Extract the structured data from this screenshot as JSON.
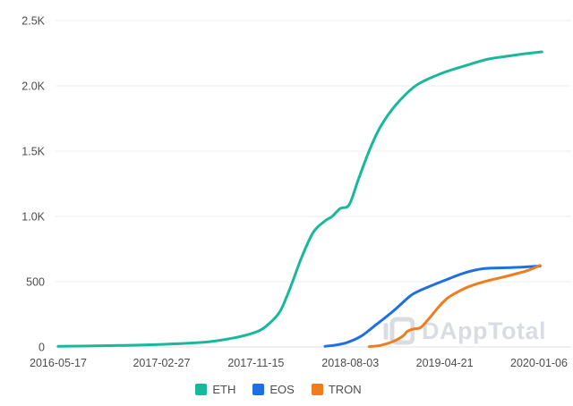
{
  "watermark": {
    "text": "DAppTotal"
  },
  "chart_data": {
    "type": "line",
    "description": "Cumulative number of DApps over time by platform",
    "grid": "horizontal-only",
    "legend_position": "bottom-center",
    "x_axis": {
      "kind": "time",
      "unit": "days since 2016-05-17",
      "range_days": [
        0,
        1330
      ],
      "ticks": [
        {
          "day": 0,
          "label": "2016-05-17"
        },
        {
          "day": 286,
          "label": "2017-02-27"
        },
        {
          "day": 547,
          "label": "2017-11-15"
        },
        {
          "day": 808,
          "label": "2018-08-03"
        },
        {
          "day": 1069,
          "label": "2019-04-21"
        },
        {
          "day": 1330,
          "label": "2020-01-06"
        }
      ]
    },
    "y_axis": {
      "range": [
        0,
        2500
      ],
      "ticks": [
        {
          "value": 0,
          "label": "0"
        },
        {
          "value": 500,
          "label": "500"
        },
        {
          "value": 1000,
          "label": "1.0K"
        },
        {
          "value": 1500,
          "label": "1.5K"
        },
        {
          "value": 2000,
          "label": "2.0K"
        },
        {
          "value": 2500,
          "label": "2.5K"
        }
      ]
    },
    "series": [
      {
        "name": "ETH",
        "color": "#19b89b",
        "points": [
          [
            0,
            5
          ],
          [
            136,
            10
          ],
          [
            265,
            18
          ],
          [
            409,
            38
          ],
          [
            495,
            75
          ],
          [
            552,
            120
          ],
          [
            582,
            175
          ],
          [
            612,
            265
          ],
          [
            632,
            385
          ],
          [
            649,
            505
          ],
          [
            674,
            690
          ],
          [
            706,
            880
          ],
          [
            738,
            965
          ],
          [
            758,
            1000
          ],
          [
            780,
            1060
          ],
          [
            805,
            1090
          ],
          [
            830,
            1280
          ],
          [
            860,
            1500
          ],
          [
            892,
            1690
          ],
          [
            936,
            1860
          ],
          [
            991,
            2005
          ],
          [
            1060,
            2095
          ],
          [
            1127,
            2155
          ],
          [
            1189,
            2205
          ],
          [
            1251,
            2230
          ],
          [
            1288,
            2245
          ],
          [
            1338,
            2260
          ]
        ]
      },
      {
        "name": "EOS",
        "color": "#1e6ee4",
        "points": [
          [
            738,
            5
          ],
          [
            768,
            15
          ],
          [
            795,
            30
          ],
          [
            818,
            55
          ],
          [
            842,
            90
          ],
          [
            879,
            170
          ],
          [
            929,
            280
          ],
          [
            971,
            385
          ],
          [
            991,
            420
          ],
          [
            1028,
            465
          ],
          [
            1078,
            520
          ],
          [
            1127,
            570
          ],
          [
            1177,
            600
          ],
          [
            1238,
            607
          ],
          [
            1288,
            612
          ],
          [
            1333,
            620
          ]
        ]
      },
      {
        "name": "TRON",
        "color": "#ef7d1d",
        "points": [
          [
            860,
            3
          ],
          [
            892,
            12
          ],
          [
            929,
            45
          ],
          [
            954,
            85
          ],
          [
            966,
            120
          ],
          [
            983,
            138
          ],
          [
            1003,
            150
          ],
          [
            1028,
            225
          ],
          [
            1053,
            308
          ],
          [
            1078,
            377
          ],
          [
            1103,
            418
          ],
          [
            1127,
            452
          ],
          [
            1157,
            482
          ],
          [
            1189,
            508
          ],
          [
            1226,
            532
          ],
          [
            1263,
            558
          ],
          [
            1301,
            588
          ],
          [
            1333,
            625
          ]
        ]
      }
    ]
  },
  "colors": {
    "grid_line": "#ededed",
    "axis_line": "#e2e2e2",
    "axis_text": "#4c4c50",
    "watermark": "#d9dce2",
    "background": "#ffffff"
  }
}
